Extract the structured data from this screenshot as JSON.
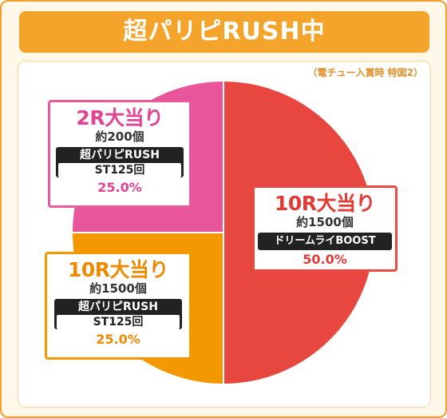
{
  "title": "超パリピRUSH中",
  "note": "（電チュー入賞時 特図2）",
  "chart_data": {
    "type": "pie",
    "title": "超パリピRUSH中",
    "start_angle_deg": 0,
    "direction": "clockwise",
    "slices": [
      {
        "label": "10R大当り",
        "sub": "約1500個",
        "mode": "ドリームライBOOST",
        "value": 50.0,
        "value_label": "50.0%",
        "color": "#e8473f"
      },
      {
        "label": "10R大当り",
        "sub": "約1500個",
        "mode": "超パリピRUSH",
        "mode_detail": "ST125回",
        "value": 25.0,
        "value_label": "25.0%",
        "color": "#f39800"
      },
      {
        "label": "2R大当り",
        "sub": "約200個",
        "mode": "超パリピRUSH",
        "mode_detail": "ST125回",
        "value": 25.0,
        "value_label": "25.0%",
        "color": "#e8559a"
      }
    ]
  }
}
